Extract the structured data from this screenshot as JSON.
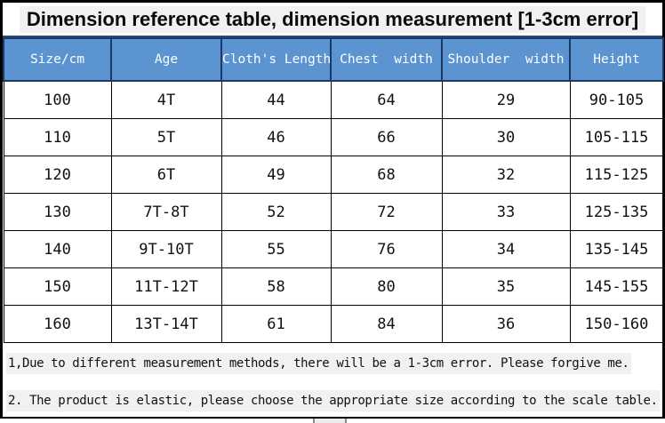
{
  "title": "Dimension reference table, dimension measurement [1-3cm error]",
  "table": {
    "columns": [
      "Size/cm",
      "Age",
      "Cloth's Length",
      "Chest  width",
      "Shoulder  width",
      "Height"
    ],
    "rows": [
      [
        "100",
        "4T",
        "44",
        "64",
        "29",
        "90-105"
      ],
      [
        "110",
        "5T",
        "46",
        "66",
        "30",
        "105-115"
      ],
      [
        "120",
        "6T",
        "49",
        "68",
        "32",
        "115-125"
      ],
      [
        "130",
        "7T-8T",
        "52",
        "72",
        "33",
        "125-135"
      ],
      [
        "140",
        "9T-10T",
        "55",
        "76",
        "34",
        "135-145"
      ],
      [
        "150",
        "11T-12T",
        "58",
        "80",
        "35",
        "145-155"
      ],
      [
        "160",
        "13T-14T",
        "61",
        "84",
        "36",
        "150-160"
      ]
    ]
  },
  "notes": [
    "1,Due to different measurement methods, there will be a 1-3cm error. Please forgive me.",
    "2. The product is elastic, please choose the appropriate size according to the scale table."
  ],
  "colors": {
    "header_bg": "#5b94d0",
    "header_text": "#ffffff",
    "header_border": "#1b3a66",
    "body_border": "#000000",
    "highlight": "#f1f1f1"
  }
}
